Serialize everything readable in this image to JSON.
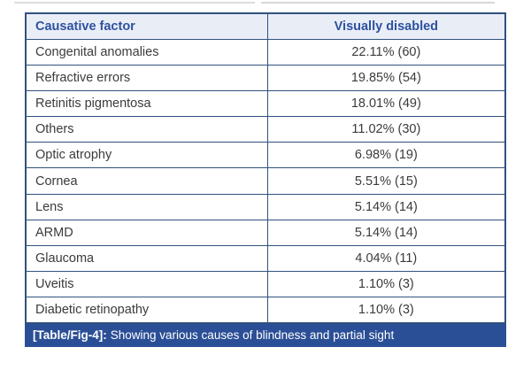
{
  "figure": {
    "header": {
      "factor_label": "Causative factor",
      "value_label": "Visually disabled"
    },
    "rows": [
      {
        "factor": "Congenital anomalies",
        "value": "22.11% (60)"
      },
      {
        "factor": "Refractive errors",
        "value": "19.85% (54)"
      },
      {
        "factor": "Retinitis pigmentosa",
        "value": "18.01% (49)"
      },
      {
        "factor": "Others",
        "value": "11.02% (30)"
      },
      {
        "factor": "Optic atrophy",
        "value": "6.98% (19)"
      },
      {
        "factor": "Cornea",
        "value": "5.51% (15)"
      },
      {
        "factor": "Lens",
        "value": "5.14% (14)"
      },
      {
        "factor": "ARMD",
        "value": "5.14% (14)"
      },
      {
        "factor": "Glaucoma",
        "value": "4.04% (11)"
      },
      {
        "factor": "Uveitis",
        "value": "1.10% (3)"
      },
      {
        "factor": "Diabetic retinopathy",
        "value": "1.10% (3)"
      }
    ],
    "caption": {
      "tag": "[Table/Fig-4]:",
      "text": "Showing various causes of blindness and partial sight"
    }
  },
  "colors": {
    "border": "#31517e",
    "header_bg": "#e9edf6",
    "header_text": "#2d52a0",
    "body_text": "#3b3b3b",
    "caption_bg": "#2b4f96",
    "caption_text": "#ffffff"
  },
  "chart_data": {
    "type": "table",
    "title": "[Table/Fig-4]: Showing various causes of blindness and partial sight",
    "columns": [
      "Causative factor",
      "Visually disabled"
    ],
    "rows": [
      [
        "Congenital anomalies",
        "22.11% (60)"
      ],
      [
        "Refractive errors",
        "19.85% (54)"
      ],
      [
        "Retinitis pigmentosa",
        "18.01% (49)"
      ],
      [
        "Others",
        "11.02% (30)"
      ],
      [
        "Optic atrophy",
        "6.98% (19)"
      ],
      [
        "Cornea",
        "5.51% (15)"
      ],
      [
        "Lens",
        "5.14% (14)"
      ],
      [
        "ARMD",
        "5.14% (14)"
      ],
      [
        "Glaucoma",
        "4.04% (11)"
      ],
      [
        "Uveitis",
        "1.10% (3)"
      ],
      [
        "Diabetic retinopathy",
        "1.10% (3)"
      ]
    ],
    "percent": [
      22.11,
      19.85,
      18.01,
      11.02,
      6.98,
      5.51,
      5.14,
      5.14,
      4.04,
      1.1,
      1.1
    ],
    "counts": [
      60,
      54,
      49,
      30,
      19,
      15,
      14,
      14,
      11,
      3,
      3
    ]
  }
}
